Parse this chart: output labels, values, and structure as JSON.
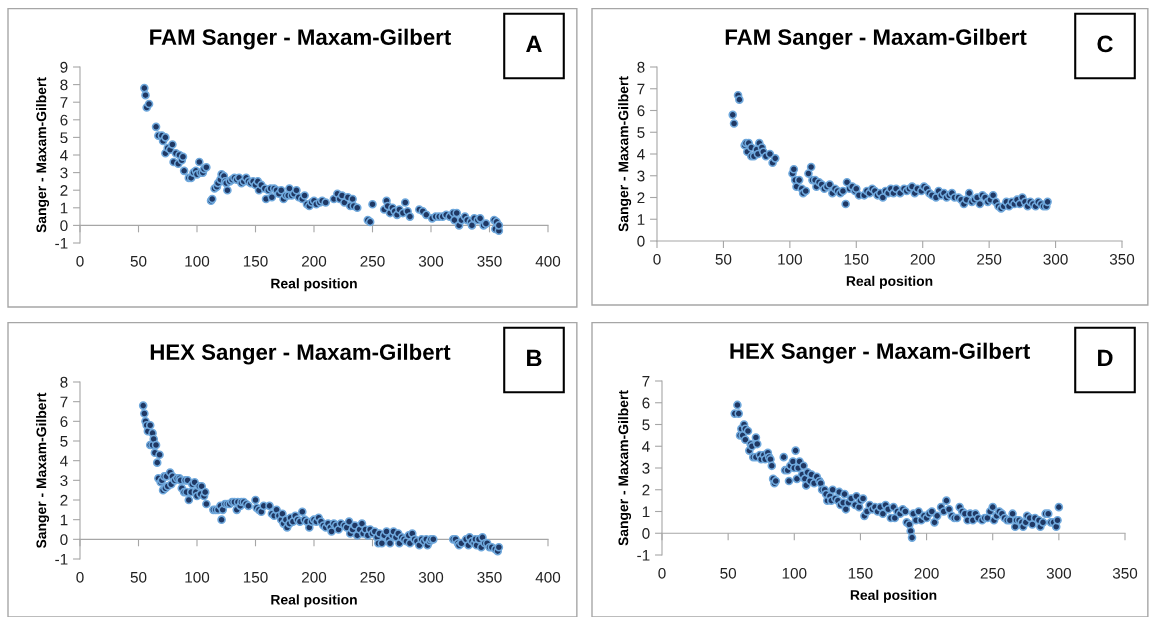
{
  "chart_data": [
    {
      "type": "scatter",
      "title": "FAM Sanger - Maxam-Gilbert",
      "xlabel": "Real position",
      "ylabel": "Sanger - Maxam-Gilbert",
      "annotations": [
        "A"
      ],
      "marker": "circle",
      "grid": false,
      "legend": false,
      "xlim": [
        0,
        400
      ],
      "xticks": [
        0,
        50,
        100,
        150,
        200,
        250,
        300,
        350,
        400
      ],
      "ylim": [
        -1,
        9
      ],
      "yticks": [
        -1,
        0,
        1,
        2,
        3,
        4,
        5,
        6,
        7,
        8,
        9
      ],
      "series": [
        {
          "color": "#1f3864",
          "x": [
            55,
            56,
            57,
            59,
            65,
            67,
            70,
            71,
            73,
            73,
            75,
            77,
            79,
            80,
            82,
            84,
            85,
            87,
            88,
            89,
            93,
            95,
            97,
            99,
            100,
            102,
            103,
            105,
            106,
            108,
            112,
            113,
            115,
            117,
            118,
            120,
            121,
            123,
            124,
            125,
            126,
            128,
            130,
            132,
            134,
            136,
            138,
            140,
            142,
            144,
            146,
            148,
            150,
            152,
            153,
            155,
            158,
            159,
            161,
            163,
            164,
            166,
            168,
            170,
            172,
            174,
            176,
            178,
            179,
            181,
            183,
            185,
            187,
            190,
            192,
            194,
            196,
            198,
            200,
            202,
            205,
            207,
            210,
            217,
            220,
            222,
            224,
            226,
            229,
            231,
            233,
            234,
            237,
            246,
            248,
            250,
            260,
            262,
            263,
            265,
            267,
            269,
            271,
            273,
            276,
            278,
            280,
            282,
            290,
            293,
            296,
            301,
            304,
            307,
            310,
            313,
            316,
            319,
            320,
            322,
            324,
            326,
            329,
            331,
            334,
            335,
            337,
            340,
            342,
            345,
            347,
            354,
            356,
            355,
            358,
            358
          ],
          "values": [
            7.8,
            7.4,
            6.7,
            6.9,
            5.6,
            5.1,
            5.1,
            4.8,
            5.0,
            4.1,
            4.4,
            4.3,
            4.6,
            3.6,
            4.1,
            3.5,
            4.0,
            3.7,
            3.9,
            3.1,
            2.7,
            2.7,
            3.0,
            3.1,
            2.9,
            3.6,
            3.0,
            3.0,
            3.2,
            3.3,
            1.4,
            1.5,
            2.1,
            2.2,
            2.4,
            2.6,
            2.9,
            2.8,
            2.5,
            2.4,
            2.0,
            2.5,
            2.6,
            2.7,
            2.6,
            2.7,
            2.4,
            2.5,
            2.7,
            2.5,
            2.4,
            2.5,
            2.3,
            2.5,
            2.0,
            2.3,
            2.1,
            1.5,
            2.0,
            2.1,
            1.6,
            2.1,
            2.0,
            1.8,
            2.0,
            1.5,
            1.7,
            1.7,
            2.1,
            1.7,
            1.8,
            2.0,
            1.6,
            1.5,
            1.7,
            1.2,
            1.1,
            1.3,
            1.4,
            1.2,
            1.3,
            1.4,
            1.3,
            1.5,
            1.8,
            1.5,
            1.7,
            1.3,
            1.6,
            1.1,
            1.5,
            1.1,
            1.0,
            0.3,
            0.2,
            1.2,
            0.9,
            1.4,
            1.1,
            0.7,
            1.0,
            0.8,
            0.6,
            0.9,
            0.7,
            1.3,
            0.8,
            0.5,
            0.9,
            0.8,
            0.6,
            0.4,
            0.5,
            0.5,
            0.5,
            0.6,
            0.5,
            0.7,
            0.3,
            0.7,
            0.0,
            0.3,
            0.5,
            0.3,
            0.2,
            0.0,
            0.4,
            0.3,
            0.4,
            0.0,
            0.1,
            0.3,
            0.2,
            -0.2,
            -0.3,
            0.0
          ]
        }
      ]
    },
    {
      "type": "scatter",
      "title": "FAM Sanger - Maxam-Gilbert",
      "xlabel": "Real position",
      "ylabel": "Sanger - Maxam-Gilbert",
      "annotations": [
        "C"
      ],
      "marker": "circle",
      "grid": false,
      "legend": false,
      "xlim": [
        0,
        350
      ],
      "xticks": [
        0,
        50,
        100,
        150,
        200,
        250,
        300,
        350
      ],
      "ylim": [
        0,
        8
      ],
      "yticks": [
        0,
        1,
        2,
        3,
        4,
        5,
        6,
        7,
        8
      ],
      "series": [
        {
          "color": "#1f3864",
          "x": [
            57,
            58,
            61,
            62,
            66,
            67,
            68,
            69,
            71,
            71,
            73,
            75,
            76,
            77,
            79,
            80,
            82,
            85,
            87,
            89,
            102,
            103,
            104,
            105,
            107,
            109,
            110,
            112,
            114,
            116,
            117,
            119,
            120,
            122,
            124,
            126,
            128,
            130,
            132,
            134,
            136,
            138,
            140,
            142,
            143,
            145,
            147,
            149,
            150,
            152,
            156,
            158,
            160,
            162,
            164,
            166,
            168,
            170,
            172,
            174,
            176,
            178,
            180,
            183,
            186,
            188,
            190,
            192,
            194,
            196,
            199,
            201,
            203,
            205,
            207,
            210,
            212,
            214,
            216,
            218,
            220,
            222,
            224,
            227,
            229,
            231,
            233,
            235,
            237,
            239,
            241,
            243,
            245,
            247,
            249,
            251,
            253,
            255,
            257,
            259,
            261,
            263,
            265,
            267,
            269,
            271,
            273,
            275,
            277,
            279,
            281,
            283,
            285,
            287,
            289,
            291,
            293,
            294
          ],
          "values": [
            5.8,
            5.4,
            6.7,
            6.5,
            4.4,
            4.5,
            4.1,
            4.5,
            4.3,
            3.9,
            3.9,
            4.2,
            4.0,
            4.5,
            4.3,
            4.1,
            3.9,
            4.0,
            3.6,
            3.8,
            3.1,
            3.3,
            2.8,
            2.5,
            2.8,
            2.4,
            2.2,
            2.3,
            3.1,
            3.4,
            2.8,
            2.8,
            2.5,
            2.7,
            2.6,
            2.4,
            2.5,
            2.6,
            2.2,
            2.4,
            2.3,
            2.2,
            2.3,
            1.7,
            2.7,
            2.4,
            2.5,
            2.3,
            2.4,
            2.1,
            2.1,
            2.3,
            2.2,
            2.4,
            2.3,
            2.1,
            2.2,
            2.0,
            2.3,
            2.2,
            2.4,
            2.2,
            2.4,
            2.2,
            2.4,
            2.3,
            2.4,
            2.5,
            2.2,
            2.4,
            2.3,
            2.5,
            2.4,
            2.2,
            2.1,
            2.0,
            2.3,
            2.1,
            2.2,
            2.0,
            2.1,
            2.2,
            2.0,
            2.0,
            1.9,
            1.7,
            1.9,
            2.2,
            1.8,
            1.9,
            2.0,
            1.7,
            2.1,
            2.0,
            1.8,
            1.9,
            2.1,
            1.8,
            1.6,
            1.5,
            1.6,
            1.8,
            1.6,
            1.8,
            1.7,
            1.9,
            1.7,
            2.0,
            1.8,
            1.6,
            1.8,
            1.7,
            1.6,
            1.8,
            1.7,
            1.6,
            1.6,
            1.8
          ]
        }
      ]
    },
    {
      "type": "scatter",
      "title": "HEX Sanger - Maxam-Gilbert",
      "xlabel": "Real position",
      "ylabel": "Sanger - Maxam-Gilbert",
      "annotations": [
        "B"
      ],
      "marker": "circle",
      "grid": false,
      "legend": false,
      "xlim": [
        0,
        400
      ],
      "xticks": [
        0,
        50,
        100,
        150,
        200,
        250,
        300,
        350,
        400
      ],
      "ylim": [
        -1,
        8
      ],
      "yticks": [
        -1,
        0,
        1,
        2,
        3,
        4,
        5,
        6,
        7,
        8
      ],
      "series": [
        {
          "color": "#1f3864",
          "x": [
            54,
            55,
            56,
            57,
            58,
            60,
            60,
            62,
            62,
            63,
            64,
            65,
            66,
            68,
            67,
            69,
            70,
            71,
            72,
            73,
            74,
            75,
            77,
            78,
            79,
            81,
            83,
            85,
            86,
            87,
            89,
            90,
            91,
            92,
            93,
            95,
            96,
            98,
            99,
            100,
            102,
            103,
            104,
            106,
            107,
            108,
            114,
            116,
            118,
            120,
            121,
            122,
            124,
            126,
            128,
            130,
            132,
            134,
            135,
            137,
            138,
            140,
            142,
            144,
            150,
            151,
            153,
            155,
            157,
            162,
            164,
            166,
            168,
            170,
            172,
            173,
            174,
            176,
            177,
            179,
            180,
            182,
            184,
            186,
            188,
            190,
            192,
            194,
            196,
            198,
            200,
            202,
            204,
            206,
            208,
            210,
            212,
            214,
            215,
            217,
            219,
            221,
            223,
            226,
            228,
            230,
            231,
            233,
            235,
            237,
            239,
            241,
            242,
            244,
            246,
            248,
            250,
            252,
            254,
            255,
            256,
            258,
            260,
            262,
            264,
            265,
            267,
            268,
            270,
            272,
            273,
            275,
            277,
            279,
            281,
            282,
            284,
            286,
            288,
            290,
            292,
            294,
            296,
            297,
            299,
            300,
            302,
            319,
            321,
            323,
            324,
            326,
            330,
            332,
            333,
            335,
            337,
            338,
            339,
            341,
            343,
            344,
            346,
            348,
            350,
            352,
            355,
            357,
            358
          ],
          "values": [
            6.8,
            6.4,
            6.0,
            5.8,
            5.5,
            5.8,
            4.8,
            5.4,
            4.8,
            5.1,
            4.4,
            4.8,
            3.9,
            4.3,
            3.1,
            2.9,
            3.0,
            2.5,
            3.2,
            2.6,
            3.2,
            2.7,
            3.4,
            2.8,
            3.2,
            3.0,
            3.1,
            3.1,
            3.0,
            2.6,
            2.4,
            3.0,
            2.4,
            3.0,
            2.0,
            2.4,
            2.8,
            2.9,
            2.4,
            2.2,
            2.7,
            2.3,
            2.7,
            2.2,
            2.4,
            1.8,
            1.5,
            1.5,
            1.5,
            1.7,
            1.0,
            1.5,
            1.8,
            1.8,
            1.8,
            1.9,
            1.9,
            1.5,
            1.9,
            1.7,
            1.9,
            1.9,
            1.8,
            1.7,
            2.0,
            1.6,
            1.5,
            1.4,
            1.7,
            1.7,
            1.3,
            1.2,
            1.5,
            1.2,
            1.0,
            1.3,
            0.8,
            1.0,
            0.6,
            0.8,
            1.1,
            0.9,
            1.2,
            1.0,
            0.9,
            1.4,
            1.0,
            0.9,
            0.6,
            0.9,
            1.0,
            0.9,
            1.1,
            0.9,
            0.7,
            0.6,
            0.8,
            0.6,
            0.4,
            0.8,
            0.7,
            0.5,
            0.8,
            0.7,
            0.6,
            0.9,
            0.3,
            0.5,
            0.7,
            0.2,
            0.5,
            0.8,
            0.3,
            0.5,
            0.2,
            0.5,
            0.3,
            0.4,
            0.1,
            -0.2,
            0.3,
            -0.2,
            0.2,
            0.4,
            0.0,
            -0.2,
            0.2,
            0.4,
            0.1,
            0.3,
            -0.2,
            0.1,
            0.0,
            -0.1,
            0.2,
            -0.2,
            0.3,
            0.0,
            -0.1,
            -0.3,
            0.0,
            -0.1,
            0.0,
            -0.3,
            -0.1,
            0.0,
            0.0,
            0.0,
            0.0,
            -0.2,
            -0.3,
            -0.2,
            0.0,
            -0.3,
            0.1,
            -0.1,
            -0.2,
            0.0,
            -0.3,
            0.0,
            -0.4,
            0.1,
            -0.2,
            -0.2,
            -0.4,
            -0.4,
            -0.5,
            -0.6,
            -0.4
          ]
        }
      ]
    },
    {
      "type": "scatter",
      "title": "HEX Sanger - Maxam-Gilbert",
      "xlabel": "Real position",
      "ylabel": "Sanger - Maxam-Gilbert",
      "annotations": [
        "D"
      ],
      "marker": "circle",
      "grid": false,
      "legend": false,
      "xlim": [
        0,
        350
      ],
      "xticks": [
        0,
        50,
        100,
        150,
        200,
        250,
        300,
        350
      ],
      "ylim": [
        -1,
        7
      ],
      "yticks": [
        -1,
        0,
        1,
        2,
        3,
        4,
        5,
        6,
        7
      ],
      "series": [
        {
          "color": "#1f3864",
          "x": [
            55,
            57,
            58,
            59,
            60,
            61,
            62,
            63,
            63,
            65,
            66,
            67,
            68,
            69,
            71,
            71,
            72,
            74,
            75,
            77,
            78,
            80,
            81,
            82,
            83,
            84,
            85,
            86,
            92,
            93,
            95,
            96,
            97,
            99,
            100,
            101,
            102,
            103,
            104,
            106,
            107,
            108,
            109,
            110,
            112,
            113,
            115,
            117,
            119,
            120,
            121,
            123,
            124,
            125,
            127,
            128,
            129,
            131,
            133,
            134,
            135,
            137,
            138,
            139,
            141,
            143,
            146,
            147,
            149,
            150,
            152,
            153,
            155,
            157,
            159,
            161,
            163,
            165,
            167,
            169,
            171,
            173,
            175,
            176,
            178,
            180,
            182,
            184,
            185,
            187,
            188,
            189,
            190,
            192,
            194,
            196,
            198,
            200,
            202,
            204,
            206,
            208,
            211,
            213,
            215,
            217,
            219,
            221,
            223,
            225,
            227,
            229,
            231,
            233,
            235,
            237,
            239,
            242,
            244,
            246,
            248,
            250,
            251,
            253,
            255,
            257,
            259,
            261,
            263,
            265,
            267,
            268,
            270,
            272,
            273,
            275,
            276,
            278,
            280,
            282,
            285,
            286,
            288,
            290,
            292,
            294,
            296,
            298,
            299,
            300
          ],
          "values": [
            5.5,
            5.9,
            5.5,
            4.5,
            4.8,
            4.5,
            5.0,
            4.8,
            4.3,
            4.7,
            3.8,
            4.1,
            4.0,
            3.5,
            3.5,
            4.4,
            4.1,
            3.6,
            3.4,
            3.6,
            3.4,
            3.7,
            3.5,
            3.4,
            3.1,
            2.5,
            2.3,
            2.4,
            3.5,
            2.9,
            2.9,
            2.4,
            3.1,
            3.3,
            3.0,
            3.8,
            2.5,
            3.0,
            3.3,
            2.7,
            3.1,
            2.5,
            2.2,
            2.8,
            2.4,
            2.7,
            2.3,
            2.6,
            2.4,
            2.3,
            2.0,
            2.0,
            1.8,
            1.5,
            1.7,
            1.5,
            2.0,
            1.6,
            1.5,
            1.9,
            1.3,
            1.4,
            1.8,
            1.1,
            1.4,
            1.6,
            1.3,
            1.7,
            1.2,
            1.5,
            1.6,
            0.8,
            1.0,
            1.3,
            1.1,
            1.2,
            1.0,
            1.2,
            0.9,
            1.3,
            1.1,
            0.7,
            1.2,
            0.7,
            1.0,
            0.9,
            1.1,
            1.0,
            0.5,
            0.4,
            0.1,
            -0.2,
            0.9,
            0.6,
            1.0,
            0.6,
            0.8,
            0.7,
            0.9,
            1.0,
            0.5,
            0.8,
            1.2,
            1.0,
            1.5,
            1.1,
            0.8,
            0.7,
            0.7,
            1.2,
            1.0,
            0.9,
            0.6,
            0.9,
            0.6,
            0.9,
            0.7,
            0.6,
            0.7,
            0.7,
            1.0,
            1.2,
            0.6,
            0.8,
            1.0,
            0.9,
            0.7,
            0.6,
            0.6,
            0.9,
            0.3,
            0.6,
            0.6,
            0.5,
            0.3,
            0.5,
            0.8,
            0.7,
            0.4,
            0.7,
            0.6,
            0.3,
            0.5,
            0.9,
            0.9,
            0.5,
            0.5,
            0.3,
            0.6,
            1.2
          ]
        }
      ]
    }
  ]
}
